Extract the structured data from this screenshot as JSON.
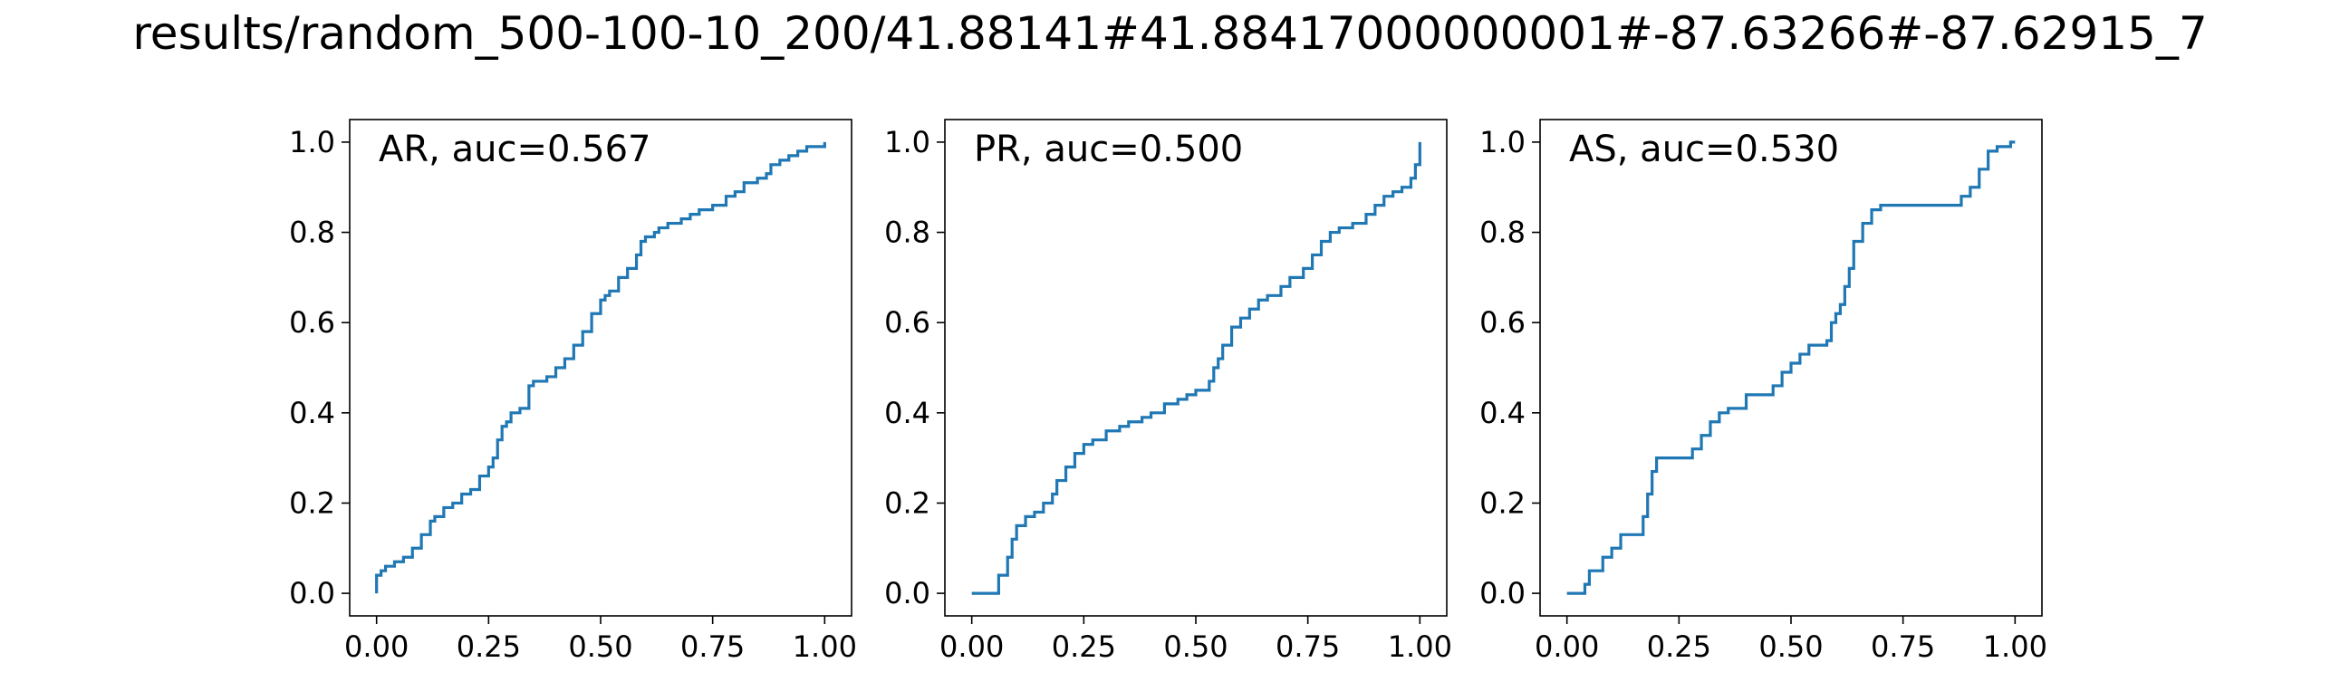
{
  "figure": {
    "title": "results/random_500-100-10_200/41.88141#41.88417000000001#-87.63266#-87.62915_7"
  },
  "colors": {
    "line": "#1f77b4",
    "axes": "#000000"
  },
  "chart_data": [
    {
      "type": "line",
      "title": "AR, auc=0.567",
      "xlabel": "",
      "ylabel": "",
      "xlim": [
        -0.06,
        1.06
      ],
      "ylim": [
        -0.05,
        1.05
      ],
      "xticks": [
        "0.00",
        "0.25",
        "0.50",
        "0.75",
        "1.00"
      ],
      "yticks": [
        "0.0",
        "0.2",
        "0.4",
        "0.6",
        "0.8",
        "1.0"
      ],
      "grid": false,
      "series": [
        {
          "x": [
            0.0,
            0.0,
            0.01,
            0.02,
            0.04,
            0.06,
            0.08,
            0.1,
            0.12,
            0.13,
            0.15,
            0.17,
            0.19,
            0.21,
            0.23,
            0.25,
            0.26,
            0.27,
            0.28,
            0.29,
            0.3,
            0.32,
            0.34,
            0.35,
            0.38,
            0.4,
            0.42,
            0.44,
            0.46,
            0.48,
            0.5,
            0.51,
            0.52,
            0.54,
            0.56,
            0.58,
            0.59,
            0.6,
            0.62,
            0.63,
            0.65,
            0.68,
            0.7,
            0.72,
            0.75,
            0.78,
            0.8,
            0.82,
            0.85,
            0.87,
            0.88,
            0.9,
            0.92,
            0.94,
            0.96,
            0.98,
            1.0
          ],
          "y": [
            0.0,
            0.04,
            0.05,
            0.06,
            0.07,
            0.08,
            0.1,
            0.13,
            0.16,
            0.17,
            0.19,
            0.2,
            0.22,
            0.23,
            0.26,
            0.28,
            0.3,
            0.34,
            0.37,
            0.38,
            0.4,
            0.41,
            0.46,
            0.47,
            0.48,
            0.5,
            0.52,
            0.55,
            0.58,
            0.62,
            0.65,
            0.66,
            0.67,
            0.7,
            0.72,
            0.75,
            0.78,
            0.79,
            0.8,
            0.81,
            0.82,
            0.83,
            0.84,
            0.85,
            0.86,
            0.88,
            0.89,
            0.91,
            0.92,
            0.93,
            0.95,
            0.96,
            0.97,
            0.98,
            0.99,
            0.99,
            1.0
          ]
        }
      ]
    },
    {
      "type": "line",
      "title": "PR, auc=0.500",
      "xlabel": "",
      "ylabel": "",
      "xlim": [
        -0.06,
        1.06
      ],
      "ylim": [
        -0.05,
        1.05
      ],
      "xticks": [
        "0.00",
        "0.25",
        "0.50",
        "0.75",
        "1.00"
      ],
      "yticks": [
        "0.0",
        "0.2",
        "0.4",
        "0.6",
        "0.8",
        "1.0"
      ],
      "grid": false,
      "series": [
        {
          "x": [
            0.0,
            0.05,
            0.06,
            0.08,
            0.09,
            0.1,
            0.12,
            0.14,
            0.16,
            0.18,
            0.19,
            0.21,
            0.23,
            0.25,
            0.27,
            0.3,
            0.33,
            0.35,
            0.38,
            0.4,
            0.43,
            0.46,
            0.48,
            0.5,
            0.53,
            0.54,
            0.55,
            0.56,
            0.58,
            0.6,
            0.62,
            0.64,
            0.66,
            0.69,
            0.71,
            0.74,
            0.76,
            0.78,
            0.8,
            0.82,
            0.85,
            0.88,
            0.9,
            0.92,
            0.94,
            0.96,
            0.98,
            0.99,
            1.0
          ],
          "y": [
            0.0,
            0.0,
            0.04,
            0.08,
            0.12,
            0.15,
            0.17,
            0.18,
            0.2,
            0.22,
            0.25,
            0.28,
            0.31,
            0.33,
            0.34,
            0.36,
            0.37,
            0.38,
            0.39,
            0.4,
            0.42,
            0.43,
            0.44,
            0.45,
            0.47,
            0.5,
            0.52,
            0.55,
            0.59,
            0.61,
            0.63,
            0.65,
            0.66,
            0.68,
            0.7,
            0.72,
            0.75,
            0.78,
            0.8,
            0.81,
            0.82,
            0.84,
            0.86,
            0.88,
            0.89,
            0.9,
            0.92,
            0.95,
            1.0
          ]
        }
      ]
    },
    {
      "type": "line",
      "title": "AS, auc=0.530",
      "xlabel": "",
      "ylabel": "",
      "xlim": [
        -0.06,
        1.06
      ],
      "ylim": [
        -0.05,
        1.05
      ],
      "xticks": [
        "0.00",
        "0.25",
        "0.50",
        "0.75",
        "1.00"
      ],
      "yticks": [
        "0.0",
        "0.2",
        "0.4",
        "0.6",
        "0.8",
        "1.0"
      ],
      "grid": false,
      "series": [
        {
          "x": [
            0.0,
            0.04,
            0.05,
            0.08,
            0.1,
            0.12,
            0.17,
            0.18,
            0.19,
            0.2,
            0.22,
            0.25,
            0.28,
            0.3,
            0.32,
            0.34,
            0.36,
            0.4,
            0.45,
            0.46,
            0.48,
            0.5,
            0.52,
            0.54,
            0.58,
            0.59,
            0.6,
            0.61,
            0.62,
            0.63,
            0.64,
            0.66,
            0.68,
            0.7,
            0.75,
            0.8,
            0.86,
            0.88,
            0.9,
            0.92,
            0.94,
            0.96,
            0.99,
            1.0
          ],
          "y": [
            0.0,
            0.02,
            0.05,
            0.08,
            0.1,
            0.13,
            0.17,
            0.22,
            0.27,
            0.3,
            0.3,
            0.3,
            0.32,
            0.35,
            0.38,
            0.4,
            0.41,
            0.44,
            0.44,
            0.46,
            0.49,
            0.51,
            0.53,
            0.55,
            0.56,
            0.6,
            0.62,
            0.64,
            0.68,
            0.72,
            0.78,
            0.82,
            0.85,
            0.86,
            0.86,
            0.86,
            0.86,
            0.88,
            0.9,
            0.94,
            0.98,
            0.99,
            1.0,
            1.0
          ]
        }
      ]
    }
  ]
}
